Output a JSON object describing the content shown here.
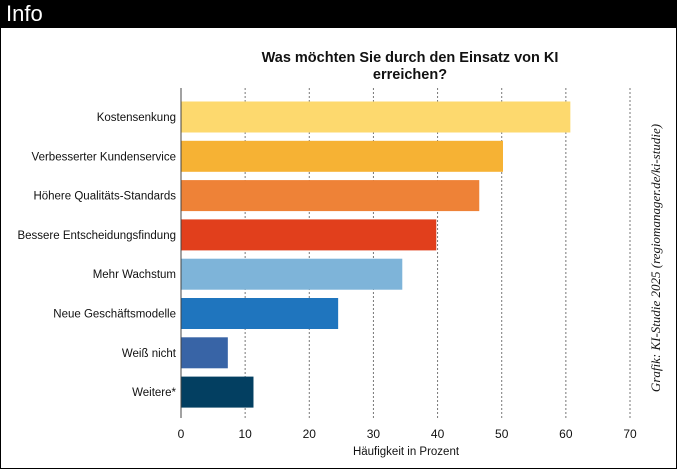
{
  "header": {
    "title": "Info"
  },
  "credit": "Grafik: KI-Studie 2025 (regiomanager.de/ki-studie)",
  "chart_data": {
    "type": "bar",
    "orientation": "horizontal",
    "title": "Was möchten Sie durch den Einsatz von KI erreichen?",
    "xlabel": "Häufigkeit in Prozent",
    "ylabel": "",
    "xlim": [
      0,
      70
    ],
    "xticks": [
      0,
      10,
      20,
      30,
      40,
      50,
      60,
      70
    ],
    "grid": "vertical-dotted",
    "categories": [
      "Kostensenkung",
      "Verbesserter Kundenservice",
      "Höhere Qualitäts-Standards",
      "Bessere Entscheidungsfindung",
      "Mehr Wachstum",
      "Neue Geschäftsmodelle",
      "Weiß nicht",
      "Weitere*"
    ],
    "values": [
      60.7,
      50.2,
      46.5,
      39.8,
      34.5,
      24.5,
      7.3,
      11.3
    ],
    "colors": [
      "#FDD96E",
      "#F6B234",
      "#EE8237",
      "#E13F1C",
      "#7EB4D9",
      "#1F75BE",
      "#3864A6",
      "#033F61"
    ]
  }
}
